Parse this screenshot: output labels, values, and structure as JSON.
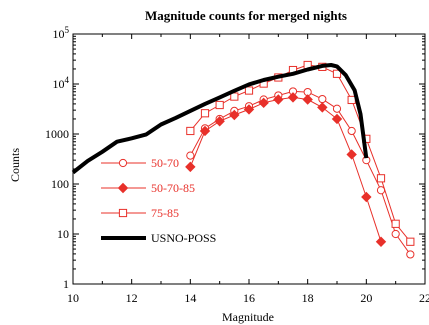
{
  "chart_data": {
    "type": "line",
    "title": "Magnitude counts for merged nights",
    "xlabel": "Magnitude",
    "ylabel": "Counts",
    "xlim": [
      10,
      22
    ],
    "ylim": [
      1,
      100000
    ],
    "yscale": "log",
    "grid": false,
    "legend_position": "bottom-left",
    "x_ticks": [
      10,
      12,
      14,
      16,
      18,
      20,
      22
    ],
    "x_tick_labels": [
      "10",
      "12",
      "14",
      "16",
      "18",
      "20",
      "22"
    ],
    "y_ticks": [
      1,
      10,
      100,
      1000,
      10000,
      100000
    ],
    "y_tick_labels": [
      "1",
      "10",
      "100",
      "1000",
      "10⁴",
      "10⁵"
    ],
    "series": [
      {
        "name": "50-70",
        "color": "#e8302a",
        "marker": "open-circle",
        "line_width": 1,
        "x": [
          14.0,
          14.5,
          15.0,
          15.5,
          16.0,
          16.5,
          17.0,
          17.5,
          18.0,
          18.5,
          19.0,
          19.5,
          20.0,
          20.5,
          21.0,
          21.5
        ],
        "y": [
          370,
          1300,
          2000,
          2900,
          3600,
          4900,
          5900,
          7100,
          6900,
          5000,
          3200,
          1150,
          300,
          75,
          10,
          3.9
        ]
      },
      {
        "name": "50-70-85",
        "color": "#e8302a",
        "marker": "filled-diamond",
        "line_width": 1,
        "x": [
          14.0,
          14.5,
          15.0,
          15.5,
          16.0,
          16.5,
          17.0,
          17.5,
          18.0,
          18.5,
          19.0,
          19.5,
          20.0,
          20.5
        ],
        "y": [
          220,
          1150,
          1800,
          2400,
          3100,
          4200,
          4900,
          5400,
          4900,
          3400,
          2000,
          390,
          55,
          7
        ]
      },
      {
        "name": "75-85",
        "color": "#e8302a",
        "marker": "open-square",
        "line_width": 1,
        "x": [
          14.0,
          14.5,
          15.0,
          15.5,
          16.0,
          16.5,
          17.0,
          17.5,
          18.0,
          18.5,
          19.0,
          19.5,
          20.0,
          20.5,
          21.0,
          21.5
        ],
        "y": [
          1150,
          2600,
          3800,
          5600,
          7400,
          10200,
          13500,
          19000,
          24000,
          22000,
          16000,
          4800,
          800,
          130,
          16,
          7
        ]
      },
      {
        "name": "USNO-POSS",
        "color": "#000000",
        "marker": "none",
        "line_width": 4,
        "x": [
          10.0,
          10.5,
          11.0,
          11.5,
          12.0,
          12.5,
          13.0,
          13.5,
          14.0,
          14.5,
          15.0,
          15.5,
          16.0,
          16.5,
          17.0,
          17.5,
          18.0,
          18.5,
          18.8,
          19.0,
          19.3,
          19.6,
          19.8,
          20.0
        ],
        "y": [
          170,
          290,
          440,
          700,
          820,
          980,
          1550,
          2100,
          2900,
          4000,
          5400,
          7300,
          9800,
          12000,
          14000,
          16000,
          19500,
          23000,
          24000,
          22500,
          15000,
          7500,
          2500,
          330
        ]
      }
    ]
  }
}
